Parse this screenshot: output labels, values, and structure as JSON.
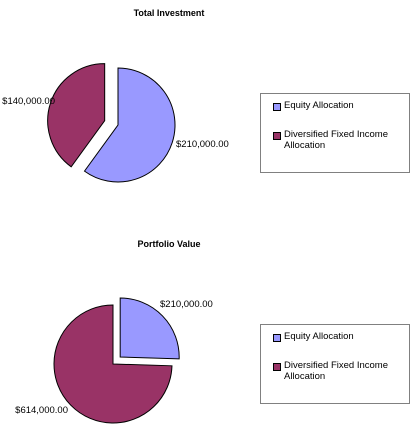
{
  "colors": {
    "equity": "#9999ff",
    "fixed_income": "#993366",
    "outline": "#000000"
  },
  "legend": {
    "equity_label": "Equity Allocation",
    "fixed_income_label": "Diversified Fixed Income Allocation"
  },
  "chart_data": [
    {
      "type": "pie",
      "title": "Total Investment",
      "slices": [
        {
          "name": "Equity Allocation",
          "value": 210000,
          "label": "$210,000.00",
          "color": "#9999ff",
          "exploded": false
        },
        {
          "name": "Diversified Fixed Income Allocation",
          "value": 140000,
          "label": "$140,000.00",
          "color": "#993366",
          "exploded": true
        }
      ],
      "legend_position": "right"
    },
    {
      "type": "pie",
      "title": "Portfolio Value",
      "slices": [
        {
          "name": "Equity Allocation",
          "value": 210000,
          "label": "$210,000.00",
          "color": "#9999ff",
          "exploded": true
        },
        {
          "name": "Diversified Fixed Income Allocation",
          "value": 614000,
          "label": "$614,000.00",
          "color": "#993366",
          "exploded": false
        }
      ],
      "legend_position": "right"
    }
  ]
}
